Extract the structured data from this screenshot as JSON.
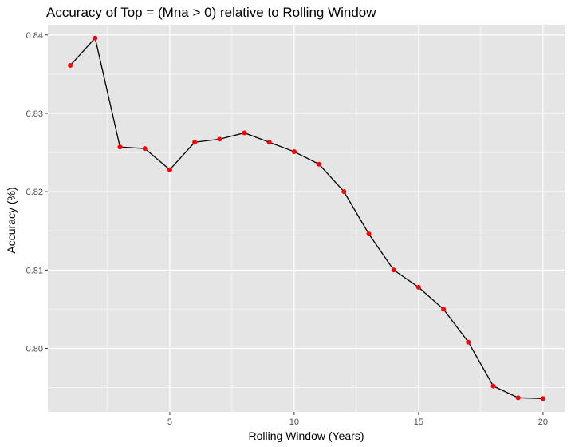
{
  "chart_data": {
    "type": "line",
    "title": "Accuracy of Top = (Mna > 0) relative to Rolling Window",
    "xlabel": "Rolling Window (Years)",
    "ylabel": "Accuracy (%)",
    "x": [
      1,
      2,
      3,
      4,
      5,
      6,
      7,
      8,
      9,
      10,
      11,
      12,
      13,
      14,
      15,
      16,
      17,
      18,
      19,
      20
    ],
    "series": [
      {
        "values": [
          0.8361,
          0.8396,
          0.8257,
          0.8255,
          0.8228,
          0.8263,
          0.8267,
          0.8275,
          0.8263,
          0.8251,
          0.8235,
          0.82,
          0.8146,
          0.81,
          0.8078,
          0.805,
          0.8008,
          0.7952,
          0.7937,
          0.7936
        ],
        "line_color": "#000000",
        "point_color": "#ff0000"
      }
    ],
    "xlim": [
      0.1,
      20.9
    ],
    "ylim": [
      0.7919,
      0.8413
    ],
    "x_ticks": [
      5,
      10,
      15,
      20
    ],
    "x_tick_labels": [
      "5",
      "10",
      "15",
      "20"
    ],
    "y_ticks": [
      0.8,
      0.81,
      0.82,
      0.83,
      0.84
    ],
    "y_tick_labels": [
      "0.80",
      "0.81",
      "0.82",
      "0.83",
      "0.84"
    ],
    "grid": true,
    "panel_background": "#e5e5e5",
    "grid_color": "#ffffff"
  }
}
